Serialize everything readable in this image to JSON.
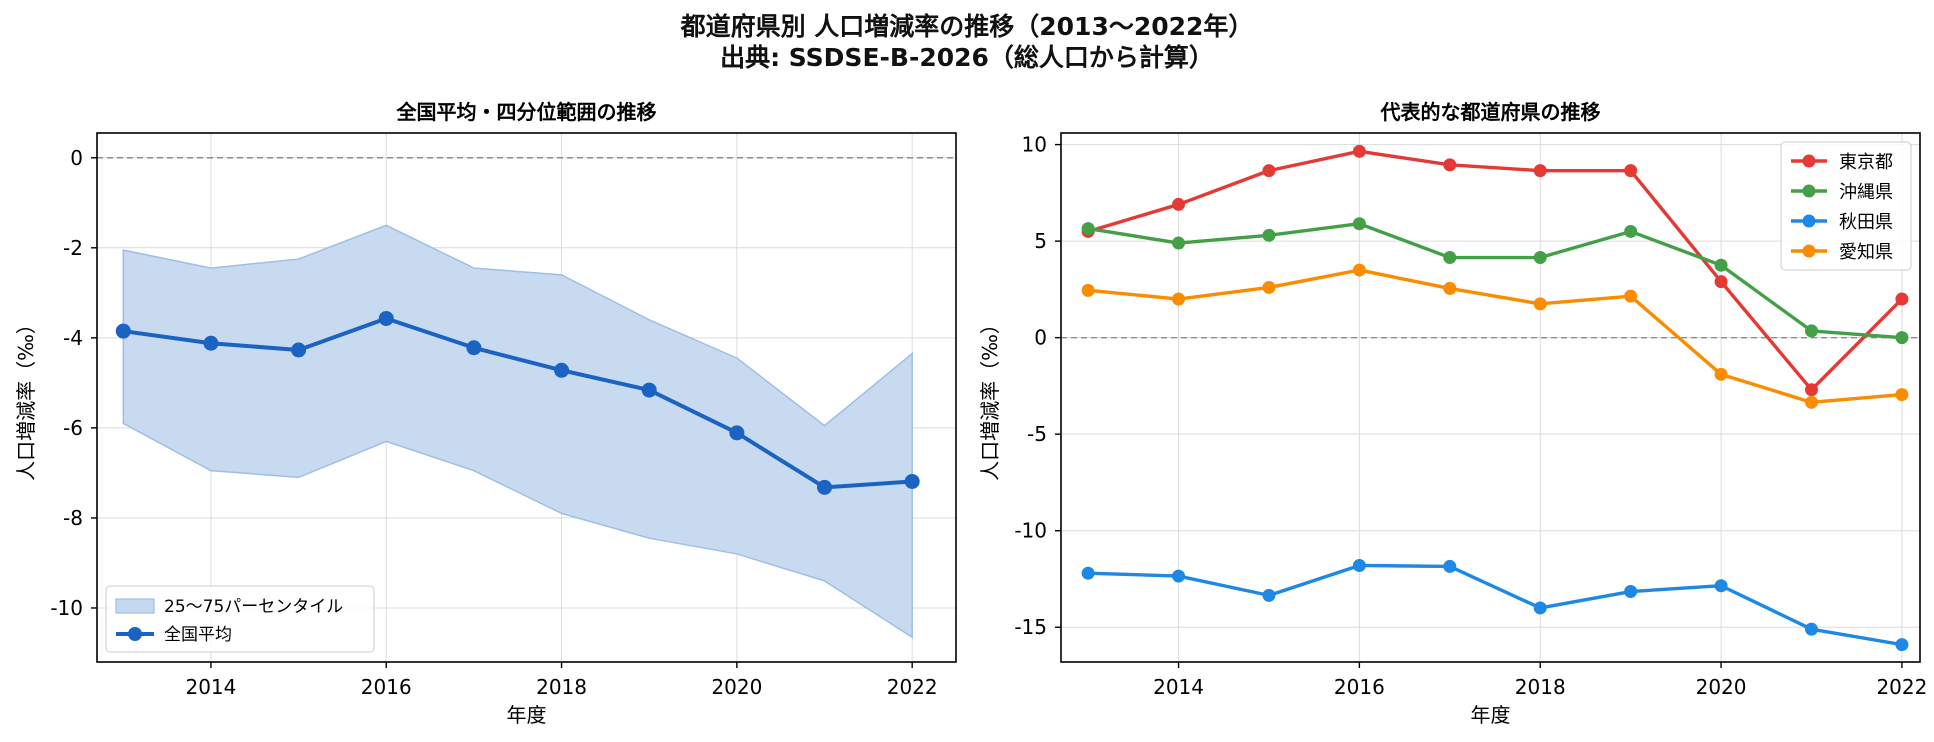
{
  "figure": {
    "title_line1": "都道府県別 人口増減率の推移（2013〜2022年）",
    "title_line2": "出典: SSDSE-B-2026（総人口から計算）"
  },
  "colors": {
    "band": "#c5d8ef",
    "band_edge": "#9dbfe6",
    "national_mean": "#1a63c2",
    "tokyo": "#e53935",
    "okinawa": "#43a047",
    "akita": "#1e88e5",
    "aichi": "#fb8c00"
  },
  "chart_data": [
    {
      "type": "area",
      "title": "全国平均・四分位範囲の推移",
      "xlabel": "年度",
      "ylabel": "人口増減率（‰）",
      "xlim": [
        2012.7,
        2022.5
      ],
      "ylim": [
        -11.2,
        0.55
      ],
      "xticks": [
        2014,
        2016,
        2018,
        2020,
        2022
      ],
      "yticks": [
        0,
        -2,
        -4,
        -6,
        -8,
        -10
      ],
      "grid": true,
      "legend_position": "lower-left",
      "reference_line": 0,
      "x": [
        2013,
        2014,
        2015,
        2016,
        2017,
        2018,
        2019,
        2020,
        2021,
        2022
      ],
      "band": {
        "name": "25〜75パーセンタイル",
        "upper": [
          -2.05,
          -2.45,
          -2.25,
          -1.5,
          -2.45,
          -2.6,
          -3.6,
          -4.45,
          -5.95,
          -4.35
        ],
        "lower": [
          -5.9,
          -6.95,
          -7.1,
          -6.3,
          -6.95,
          -7.9,
          -8.45,
          -8.8,
          -9.4,
          -10.65
        ]
      },
      "series": [
        {
          "name": "全国平均",
          "values": [
            -3.85,
            -4.12,
            -4.27,
            -3.57,
            -4.22,
            -4.72,
            -5.16,
            -6.11,
            -7.32,
            -7.19
          ]
        }
      ]
    },
    {
      "type": "line",
      "title": "代表的な都道府県の推移",
      "xlabel": "年度",
      "ylabel": "人口増減率（‰）",
      "xlim": [
        2012.7,
        2022.2
      ],
      "ylim": [
        -16.8,
        10.6
      ],
      "xticks": [
        2014,
        2016,
        2018,
        2020,
        2022
      ],
      "yticks": [
        10,
        5,
        0,
        -5,
        -10,
        -15
      ],
      "grid": true,
      "legend_position": "top-right",
      "reference_line": 0,
      "x": [
        2013,
        2014,
        2015,
        2016,
        2017,
        2018,
        2019,
        2020,
        2021,
        2022
      ],
      "series": [
        {
          "name": "東京都",
          "color_key": "tokyo",
          "values": [
            5.5,
            6.9,
            8.65,
            9.65,
            8.95,
            8.65,
            8.65,
            2.9,
            -2.7,
            2.0
          ]
        },
        {
          "name": "沖縄県",
          "color_key": "okinawa",
          "values": [
            5.65,
            4.9,
            5.3,
            5.9,
            4.15,
            4.15,
            5.5,
            3.75,
            0.35,
            0.0
          ]
        },
        {
          "name": "秋田県",
          "color_key": "akita",
          "values": [
            -12.2,
            -12.35,
            -13.35,
            -11.8,
            -11.85,
            -14.0,
            -13.15,
            -12.85,
            -15.1,
            -15.9
          ]
        },
        {
          "name": "愛知県",
          "color_key": "aichi",
          "values": [
            2.45,
            2.0,
            2.6,
            3.5,
            2.55,
            1.75,
            2.15,
            -1.9,
            -3.35,
            -2.95
          ]
        }
      ]
    }
  ]
}
